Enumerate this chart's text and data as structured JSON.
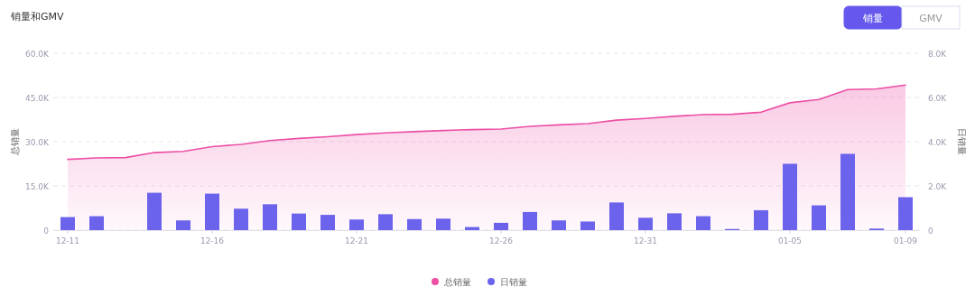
{
  "chart_data": {
    "type": "bar",
    "title": "销量和GMV",
    "annotations": [
      "销量",
      "GMV"
    ],
    "categories": [
      "12-11",
      null,
      null,
      null,
      null,
      "12-16",
      null,
      null,
      null,
      null,
      "12-21",
      null,
      null,
      null,
      null,
      "12-26",
      null,
      null,
      null,
      null,
      "12-31",
      null,
      null,
      null,
      null,
      "01-05",
      null,
      null,
      null,
      "01-09"
    ],
    "ylabel": "总销量",
    "y2label": "日销量",
    "ylim": [
      0,
      60
    ],
    "yticks": [
      {
        "value": 0,
        "label": "0"
      },
      {
        "value": 15,
        "label": "15.0K"
      },
      {
        "value": 30,
        "label": "30.0K"
      },
      {
        "value": 45,
        "label": "45.0K"
      },
      {
        "value": 60,
        "label": "60.0K"
      }
    ],
    "y2lim": [
      0,
      8
    ],
    "y2ticks": [
      {
        "value": 0,
        "label": "0"
      },
      {
        "value": 2,
        "label": "2.0K"
      },
      {
        "value": 4,
        "label": "4.0K"
      },
      {
        "value": 6,
        "label": "6.0K"
      },
      {
        "value": 8,
        "label": "8.0K"
      }
    ],
    "grid": "y",
    "legend": "bottom",
    "series": [
      {
        "name": "总销量",
        "type": "area",
        "axis": "y",
        "color": "#ec4fa5",
        "values": [
          24.0,
          24.5,
          24.6,
          26.3,
          26.7,
          28.3,
          29.1,
          30.4,
          31.1,
          31.7,
          32.4,
          33.0,
          33.4,
          33.8,
          34.1,
          34.3,
          35.2,
          35.7,
          36.1,
          37.3,
          37.9,
          38.6,
          39.2,
          39.3,
          40.0,
          43.2,
          44.3,
          47.7,
          47.9,
          49.2
        ]
      },
      {
        "name": "日销量",
        "axis": "y2",
        "color": "#6c63ec",
        "values": [
          0.59,
          0.63,
          0,
          1.69,
          0.44,
          1.65,
          0.97,
          1.17,
          0.75,
          0.69,
          0.48,
          0.72,
          0.5,
          0.52,
          0.14,
          0.33,
          0.82,
          0.44,
          0.39,
          1.25,
          0.56,
          0.76,
          0.63,
          0.05,
          0.9,
          3.0,
          1.12,
          3.45,
          0.07,
          1.49
        ]
      }
    ]
  }
}
